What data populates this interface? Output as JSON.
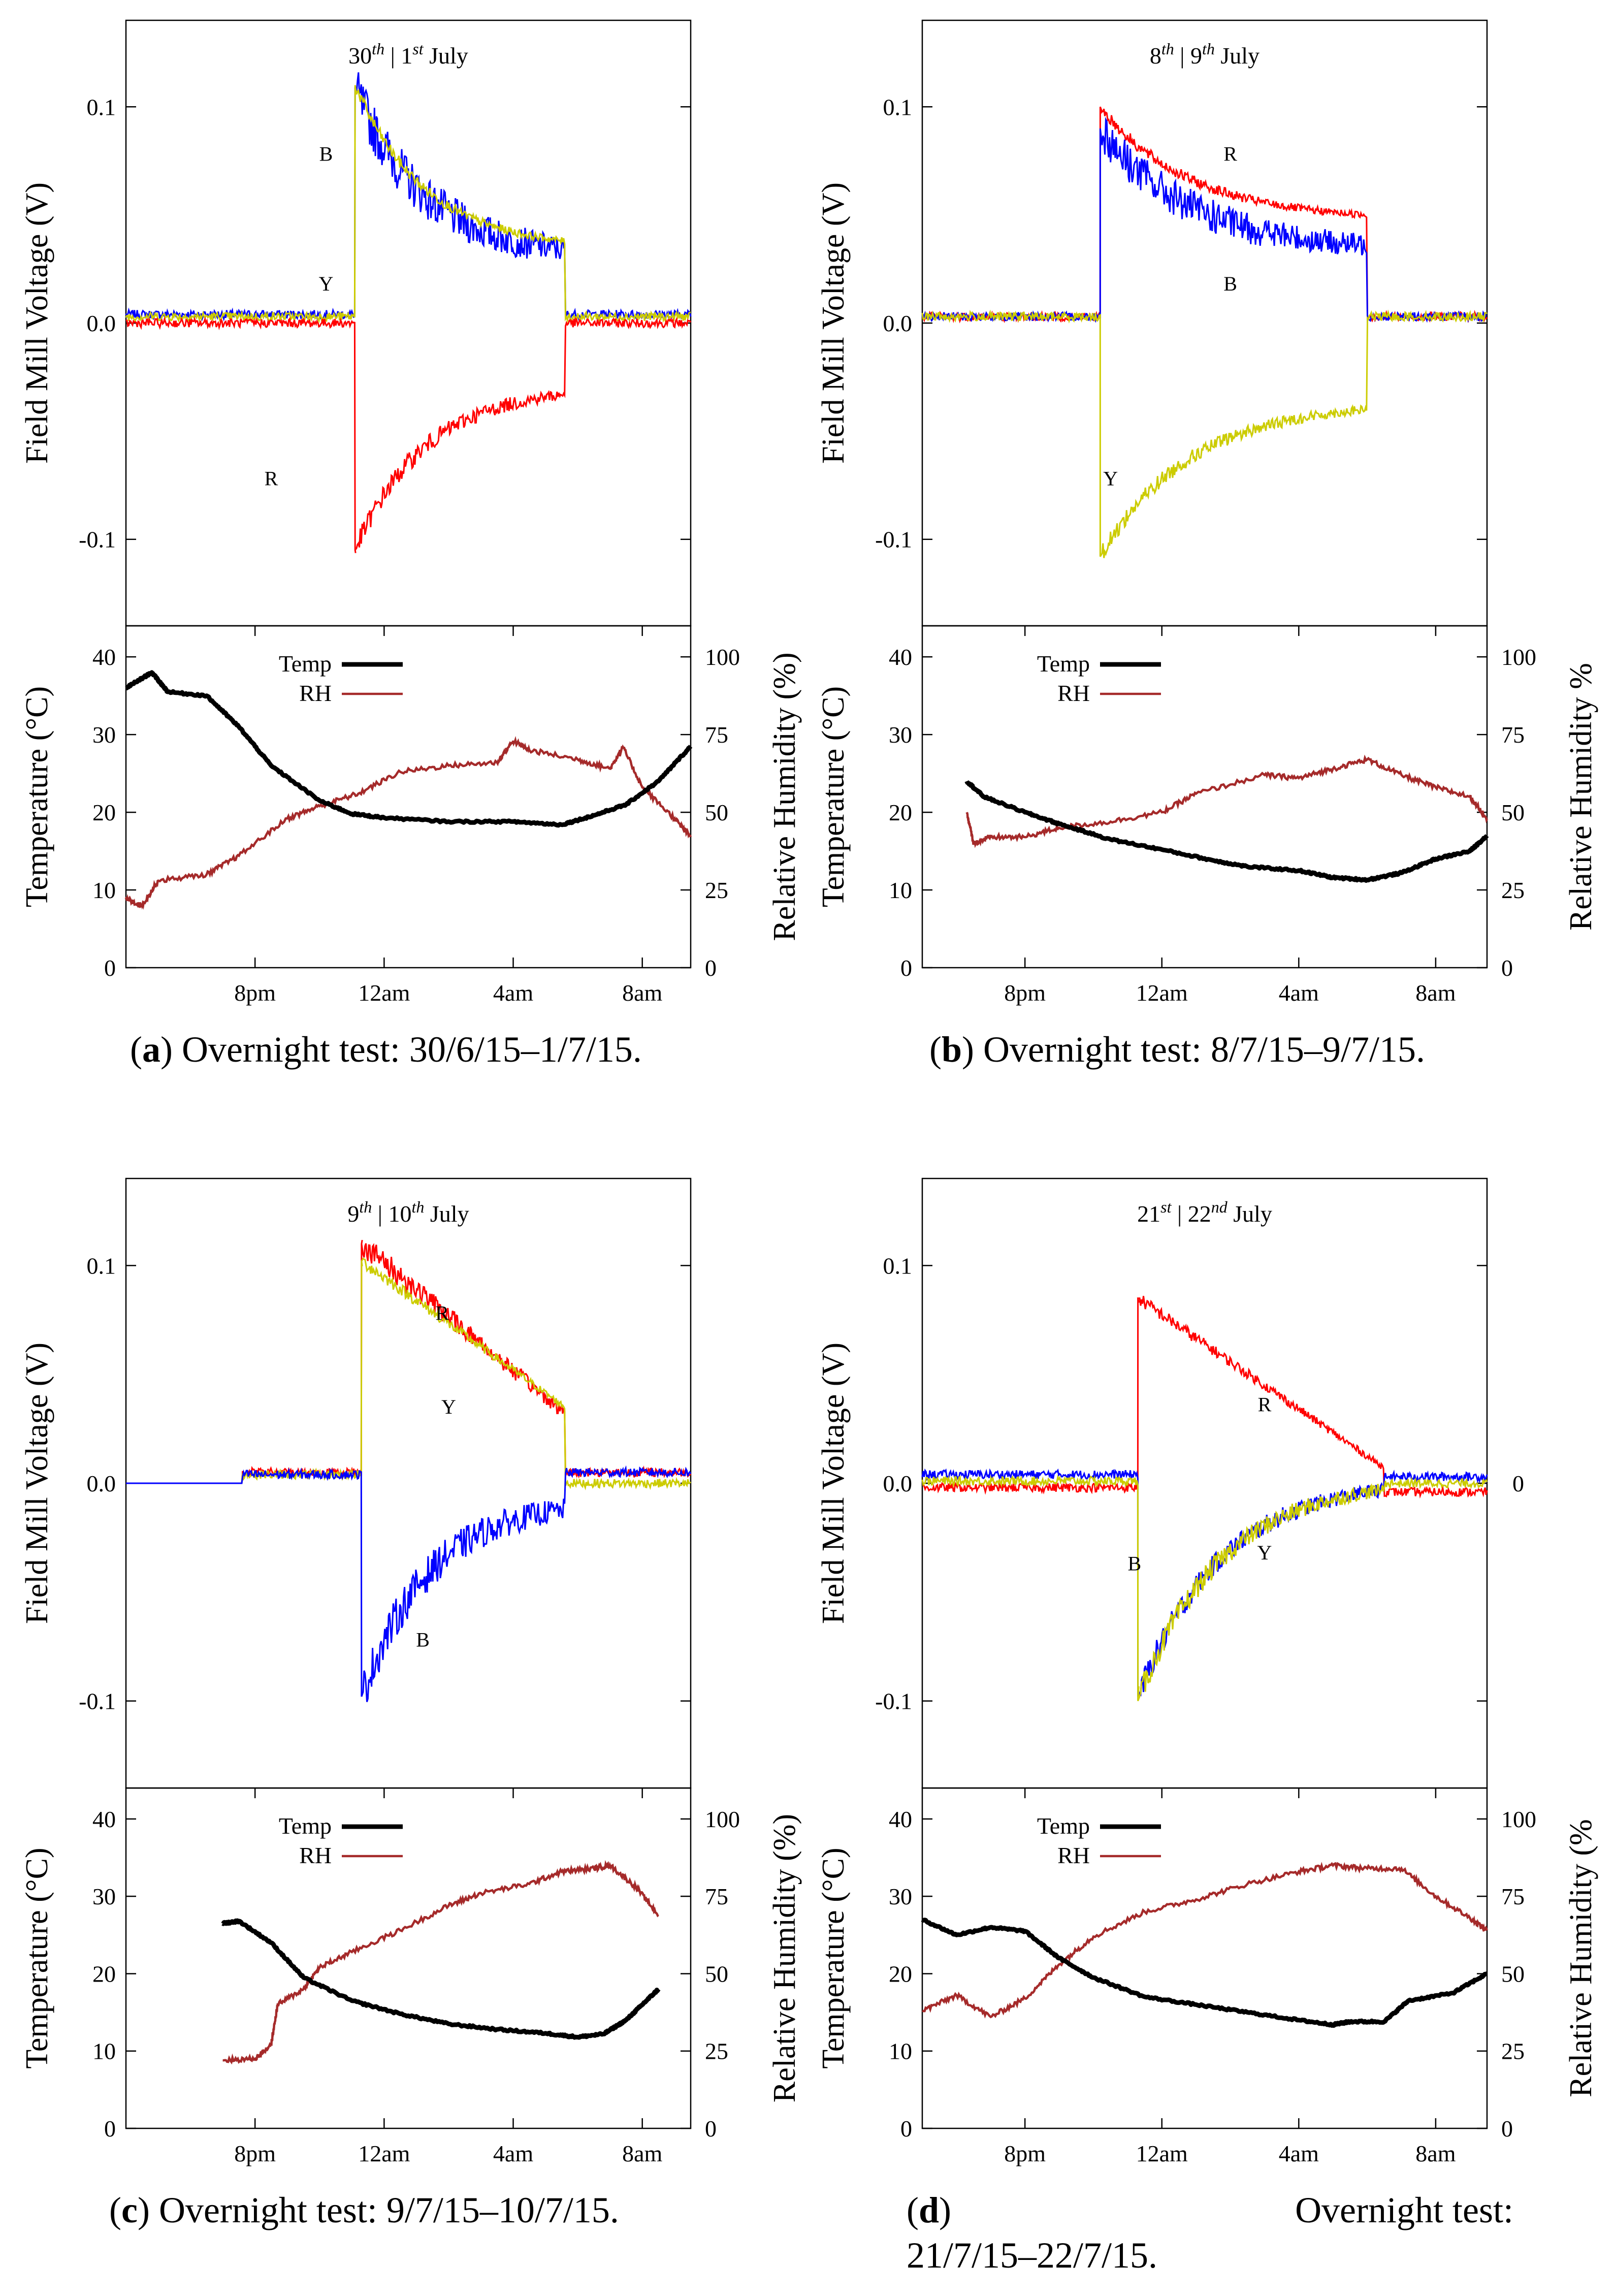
{
  "colors": {
    "R": "#ff0000",
    "B": "#0000ff",
    "Y": "#cccc00",
    "temp": "#000000",
    "rh": "#a52a2a"
  },
  "captions": [
    {
      "letter": "a",
      "text": "Overnight test: 30/6/15–1/7/15."
    },
    {
      "letter": "b",
      "text": "Overnight test: 8/7/15–9/7/15."
    },
    {
      "letter": "c",
      "text": "Overnight test: 9/7/15–10/7/15."
    },
    {
      "letter": "d",
      "text": "Overnight test:",
      "line2": "21/7/15–22/7/15."
    }
  ],
  "chart_data": [
    {
      "id": "a",
      "type": "line",
      "title": "30th | 1st July",
      "ylabel": "Field Mill Voltage (V)",
      "ylim": [
        -0.14,
        0.14
      ],
      "yticks": [
        -0.1,
        0.0,
        0.1
      ],
      "ytick_labels": [
        "-0.1",
        "0.0",
        "0.1"
      ],
      "x_hours": [
        16,
        9.5
      ],
      "series_labels": [
        {
          "name": "B",
          "x": 22.2,
          "y": 0.075
        },
        {
          "name": "Y",
          "x": 22.2,
          "y": 0.015
        },
        {
          "name": "R",
          "x": 20.5,
          "y": -0.075
        }
      ],
      "series": [
        {
          "name": "B",
          "on": 23.1,
          "off": 5.6,
          "pre": 0.004,
          "v0": 0.108,
          "v1": 0.034,
          "post": 0.004,
          "noise": 0.012,
          "decay": "exp"
        },
        {
          "name": "Y",
          "on": 23.1,
          "off": 5.6,
          "pre": 0.003,
          "v0": 0.11,
          "v1": 0.038,
          "post": 0.003,
          "noise": 0.003,
          "decay": "exp"
        },
        {
          "name": "R",
          "on": 23.1,
          "off": 5.6,
          "pre": 0.0,
          "v0": -0.105,
          "v1": -0.033,
          "post": 0.0,
          "noise": 0.005,
          "decay": "exp"
        }
      ]
    },
    {
      "id": "b",
      "type": "line",
      "title": "8th |  9th July",
      "ylabel": "Field Mill Voltage (V)",
      "ylim": [
        -0.14,
        0.14
      ],
      "yticks": [
        -0.1,
        0.0,
        0.1
      ],
      "ytick_labels": [
        "-0.1",
        "0.0",
        "0.1"
      ],
      "x_hours": [
        17,
        9.5
      ],
      "series_labels": [
        {
          "name": "R",
          "x": 2.0,
          "y": 0.075
        },
        {
          "name": "B",
          "x": 2.0,
          "y": 0.015
        },
        {
          "name": "Y",
          "x": 22.5,
          "y": -0.075
        }
      ],
      "series": [
        {
          "name": "R",
          "on": 22.2,
          "off": 6.0,
          "pre": 0.003,
          "v0": 0.1,
          "v1": 0.05,
          "post": 0.003,
          "noise": 0.003,
          "decay": "exp"
        },
        {
          "name": "B",
          "on": 22.2,
          "off": 6.0,
          "pre": 0.003,
          "v0": 0.09,
          "v1": 0.036,
          "post": 0.003,
          "noise": 0.01,
          "decay": "exp"
        },
        {
          "name": "Y",
          "on": 22.2,
          "off": 6.0,
          "pre": 0.003,
          "v0": -0.108,
          "v1": -0.04,
          "post": 0.003,
          "noise": 0.004,
          "decay": "exp"
        }
      ]
    },
    {
      "id": "c",
      "type": "line",
      "title": "9th | 10th July",
      "ylabel": "Field Mill Voltage (V)",
      "ylim": [
        -0.14,
        0.14
      ],
      "yticks": [
        -0.1,
        0.0,
        0.1
      ],
      "ytick_labels": [
        "-0.1",
        "0.0",
        "0.1"
      ],
      "x_hours": [
        16,
        9.5
      ],
      "series_labels": [
        {
          "name": "R",
          "x": 1.8,
          "y": 0.075
        },
        {
          "name": "Y",
          "x": 2.0,
          "y": 0.032
        },
        {
          "name": "B",
          "x": 1.2,
          "y": -0.075
        }
      ],
      "series": [
        {
          "name": "R",
          "on": 23.3,
          "off": 5.6,
          "pre": 0.005,
          "v0": 0.11,
          "v1": 0.032,
          "post": 0.005,
          "noise": 0.006,
          "decay": "lin"
        },
        {
          "name": "Y",
          "on": 23.3,
          "off": 5.6,
          "pre": 0.004,
          "v0": 0.102,
          "v1": 0.035,
          "post": 0.0,
          "noise": 0.003,
          "decay": "lin"
        },
        {
          "name": "B",
          "on": 23.3,
          "off": 5.6,
          "pre": 0.004,
          "v0": -0.098,
          "v1": -0.012,
          "post": 0.005,
          "noise": 0.01,
          "decay": "exp"
        }
      ]
    },
    {
      "id": "d",
      "type": "line",
      "title": "21st |  22nd July",
      "ylabel": "Field Mill Voltage (V)",
      "ylim": [
        -0.14,
        0.14
      ],
      "yticks": [
        -0.1,
        0.0,
        0.1
      ],
      "ytick_labels": [
        "-0.1",
        "0.0",
        "0.1"
      ],
      "right_ytick_label": "0",
      "x_hours": [
        17,
        9.5
      ],
      "series_labels": [
        {
          "name": "R",
          "x": 3.0,
          "y": 0.033
        },
        {
          "name": "B",
          "x": 23.2,
          "y": -0.04
        },
        {
          "name": "Y",
          "x": 3.0,
          "y": -0.035
        }
      ],
      "series": [
        {
          "name": "R",
          "on": 23.3,
          "off": 6.5,
          "pre": -0.002,
          "v0": 0.085,
          "v1": 0.007,
          "post": -0.004,
          "noise": 0.003,
          "decay": "lin"
        },
        {
          "name": "B",
          "on": 23.3,
          "off": 6.5,
          "pre": 0.004,
          "v0": -0.098,
          "v1": -0.003,
          "post": 0.003,
          "noise": 0.006,
          "decay": "exp"
        },
        {
          "name": "Y",
          "on": 23.3,
          "off": 6.5,
          "pre": 0.001,
          "v0": -0.1,
          "v1": -0.003,
          "post": 0.0,
          "noise": 0.006,
          "decay": "exp"
        }
      ]
    },
    {
      "id": "a-env",
      "type": "line",
      "ylabel": "Temperature (°C)",
      "y2label": "Relative Humidity (%)",
      "ylim": [
        0,
        44
      ],
      "yticks": [
        0,
        10,
        20,
        30,
        40
      ],
      "y2ticks": [
        0,
        25,
        50,
        75,
        100
      ],
      "y2max": 110,
      "xticks": [
        "8pm",
        "12am",
        "4am",
        "8am"
      ],
      "xtick_hours": [
        20,
        24,
        28,
        32
      ],
      "x_hours": [
        16,
        9.5
      ],
      "legend": [
        "Temp",
        "RH"
      ],
      "temp": [
        [
          16,
          36
        ],
        [
          16.8,
          38
        ],
        [
          17.3,
          35.5
        ],
        [
          18.5,
          35
        ],
        [
          19.5,
          31
        ],
        [
          20.5,
          26
        ],
        [
          22,
          21.5
        ],
        [
          23,
          19.8
        ],
        [
          24,
          19.3
        ],
        [
          26,
          18.8
        ],
        [
          28,
          18.8
        ],
        [
          29.5,
          18.4
        ],
        [
          30.5,
          19.6
        ],
        [
          31.5,
          21
        ],
        [
          32.5,
          24
        ],
        [
          33.5,
          28.5
        ]
      ],
      "rh": [
        [
          16,
          22
        ],
        [
          16.5,
          20
        ],
        [
          17,
          28
        ],
        [
          18.5,
          30
        ],
        [
          19.5,
          36
        ],
        [
          21,
          48
        ],
        [
          22,
          52
        ],
        [
          23.2,
          56
        ],
        [
          24.5,
          63
        ],
        [
          26,
          65
        ],
        [
          27.5,
          66
        ],
        [
          28,
          73
        ],
        [
          28.5,
          70
        ],
        [
          30,
          67
        ],
        [
          31,
          64
        ],
        [
          31.4,
          71
        ],
        [
          32,
          58
        ],
        [
          33,
          48
        ],
        [
          33.5,
          42
        ]
      ]
    },
    {
      "id": "b-env",
      "type": "line",
      "ylabel": "Temperature (°C)",
      "y2label": "Relative Humidity %",
      "ylim": [
        0,
        44
      ],
      "yticks": [
        0,
        10,
        20,
        30,
        40
      ],
      "y2ticks": [
        0,
        25,
        50,
        75,
        100
      ],
      "y2max": 110,
      "xticks": [
        "8pm",
        "12am",
        "4am",
        "8am"
      ],
      "xtick_hours": [
        20,
        24,
        28,
        32
      ],
      "x_hours": [
        17,
        9.5
      ],
      "legend": [
        "Temp",
        "RH"
      ],
      "temp": [
        [
          18.3,
          24
        ],
        [
          18.8,
          22
        ],
        [
          20,
          20
        ],
        [
          21,
          18.5
        ],
        [
          22.5,
          16.5
        ],
        [
          24,
          15.2
        ],
        [
          25.5,
          13.8
        ],
        [
          26.5,
          13
        ],
        [
          28,
          12.5
        ],
        [
          29,
          11.6
        ],
        [
          30,
          11.3
        ],
        [
          31,
          12.2
        ],
        [
          32,
          14
        ],
        [
          33,
          15
        ],
        [
          33.5,
          17
        ]
      ],
      "rh": [
        [
          18.3,
          50
        ],
        [
          18.5,
          40
        ],
        [
          19,
          42
        ],
        [
          20,
          42
        ],
        [
          21,
          45
        ],
        [
          22.5,
          47
        ],
        [
          24,
          50
        ],
        [
          25,
          56
        ],
        [
          27,
          62
        ],
        [
          28,
          61
        ],
        [
          29,
          64
        ],
        [
          30,
          67
        ],
        [
          31,
          62
        ],
        [
          32,
          58
        ],
        [
          33,
          55
        ],
        [
          33.5,
          48
        ]
      ]
    },
    {
      "id": "c-env",
      "type": "line",
      "ylabel": "Temperature (°C)",
      "y2label": "Relative Humidity (%)",
      "ylim": [
        0,
        44
      ],
      "yticks": [
        0,
        10,
        20,
        30,
        40
      ],
      "y2ticks": [
        0,
        25,
        50,
        75,
        100
      ],
      "y2max": 110,
      "xticks": [
        "8pm",
        "12am",
        "4am",
        "8am"
      ],
      "xtick_hours": [
        20,
        24,
        28,
        32
      ],
      "x_hours": [
        16,
        9.5
      ],
      "legend": [
        "Temp",
        "RH"
      ],
      "temp": [
        [
          19,
          26.5
        ],
        [
          19.5,
          26.8
        ],
        [
          20.5,
          24
        ],
        [
          21.5,
          19.5
        ],
        [
          23,
          16.5
        ],
        [
          24.5,
          14.8
        ],
        [
          26,
          13.5
        ],
        [
          27.5,
          12.8
        ],
        [
          29,
          12.3
        ],
        [
          30,
          11.8
        ],
        [
          30.8,
          12.2
        ],
        [
          31.5,
          14
        ],
        [
          32,
          16
        ],
        [
          32.5,
          18
        ]
      ],
      "rh": [
        [
          19,
          22
        ],
        [
          20,
          22.5
        ],
        [
          20.5,
          27
        ],
        [
          20.7,
          40
        ],
        [
          21.5,
          45
        ],
        [
          22,
          52
        ],
        [
          23,
          57
        ],
        [
          24.5,
          64
        ],
        [
          26,
          72
        ],
        [
          27,
          76
        ],
        [
          28.5,
          79
        ],
        [
          29.5,
          83
        ],
        [
          30.5,
          84
        ],
        [
          31,
          85
        ],
        [
          31.8,
          78
        ],
        [
          32.5,
          69
        ]
      ]
    },
    {
      "id": "d-env",
      "type": "line",
      "ylabel": "Temperature (°C)",
      "y2label": "Relative Humidity (%",
      "ylim": [
        0,
        44
      ],
      "yticks": [
        0,
        10,
        20,
        30,
        40
      ],
      "y2ticks": [
        0,
        25,
        50,
        75,
        100
      ],
      "y2max": 110,
      "xticks": [
        "8pm",
        "12am",
        "4am",
        "8am"
      ],
      "xtick_hours": [
        20,
        24,
        28,
        32
      ],
      "x_hours": [
        17,
        9.5
      ],
      "legend": [
        "Temp",
        "RH"
      ],
      "temp": [
        [
          17,
          27
        ],
        [
          18,
          25
        ],
        [
          19,
          26
        ],
        [
          20,
          25.5
        ],
        [
          21,
          22
        ],
        [
          22,
          19.5
        ],
        [
          23.5,
          17
        ],
        [
          25,
          16
        ],
        [
          26.5,
          15
        ],
        [
          28,
          14
        ],
        [
          29,
          13.4
        ],
        [
          29.5,
          13.8
        ],
        [
          30.5,
          13.8
        ],
        [
          31.2,
          16.5
        ],
        [
          32.5,
          17.5
        ],
        [
          33.5,
          20
        ]
      ],
      "rh": [
        [
          17,
          38
        ],
        [
          18,
          43
        ],
        [
          19,
          36
        ],
        [
          20,
          42
        ],
        [
          21,
          53
        ],
        [
          22,
          62
        ],
        [
          23.5,
          70
        ],
        [
          25,
          74
        ],
        [
          26.5,
          79
        ],
        [
          28,
          83
        ],
        [
          29,
          85
        ],
        [
          30,
          84
        ],
        [
          31,
          84
        ],
        [
          32,
          75
        ],
        [
          33,
          68
        ],
        [
          33.5,
          64
        ]
      ]
    }
  ]
}
